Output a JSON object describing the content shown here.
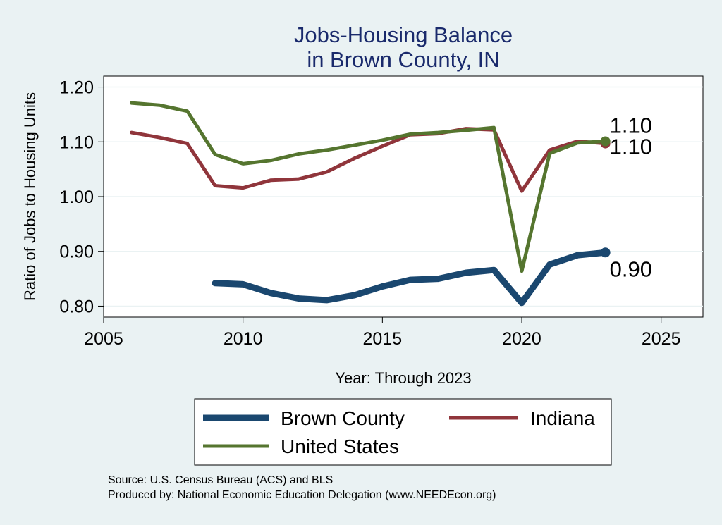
{
  "chart_data": {
    "type": "line",
    "title": [
      "Jobs-Housing Balance",
      "in Brown County, IN"
    ],
    "xlabel": "Year: Through 2023",
    "ylabel": "Ratio of Jobs to Housing Units",
    "xlim": [
      2005,
      2026.5
    ],
    "ylim": [
      0.78,
      1.22
    ],
    "xticks": [
      2005,
      2010,
      2015,
      2020,
      2025
    ],
    "yticks": [
      0.8,
      0.9,
      1.0,
      1.1,
      1.2
    ],
    "ytick_labels": [
      "0.80",
      "0.90",
      "1.00",
      "1.10",
      "1.20"
    ],
    "grid": true,
    "series": [
      {
        "name": "Brown County",
        "color": "#1a476f",
        "x": [
          2009,
          2010,
          2011,
          2012,
          2013,
          2014,
          2015,
          2016,
          2017,
          2018,
          2019,
          2020,
          2021,
          2022,
          2023
        ],
        "values": [
          0.842,
          0.84,
          0.824,
          0.814,
          0.811,
          0.82,
          0.836,
          0.848,
          0.85,
          0.861,
          0.866,
          0.806,
          0.876,
          0.893,
          0.898
        ],
        "end_label": "0.90"
      },
      {
        "name": "Indiana",
        "color": "#90353b",
        "x": [
          2006,
          2007,
          2008,
          2009,
          2010,
          2011,
          2012,
          2013,
          2014,
          2015,
          2016,
          2017,
          2018,
          2019,
          2020,
          2021,
          2022,
          2023
        ],
        "values": [
          1.117,
          1.108,
          1.097,
          1.02,
          1.016,
          1.03,
          1.032,
          1.045,
          1.07,
          1.092,
          1.113,
          1.115,
          1.124,
          1.122,
          1.01,
          1.085,
          1.101,
          1.097
        ],
        "end_label": "1.10"
      },
      {
        "name": "United States",
        "color": "#55752f",
        "x": [
          2006,
          2007,
          2008,
          2009,
          2010,
          2011,
          2012,
          2013,
          2014,
          2015,
          2016,
          2017,
          2018,
          2019,
          2020,
          2021,
          2022,
          2023
        ],
        "values": [
          1.171,
          1.167,
          1.156,
          1.077,
          1.06,
          1.066,
          1.078,
          1.085,
          1.094,
          1.103,
          1.114,
          1.117,
          1.121,
          1.126,
          0.864,
          1.079,
          1.098,
          1.101
        ],
        "end_label": "1.10"
      }
    ],
    "legend": {
      "placement": "bottom",
      "entries": [
        "Brown County",
        "Indiana",
        "United States"
      ]
    },
    "source_lines": [
      "Source: U.S. Census Bureau (ACS) and BLS",
      "Produced by: National Economic Education Delegation (www.NEEDEcon.org)"
    ]
  }
}
